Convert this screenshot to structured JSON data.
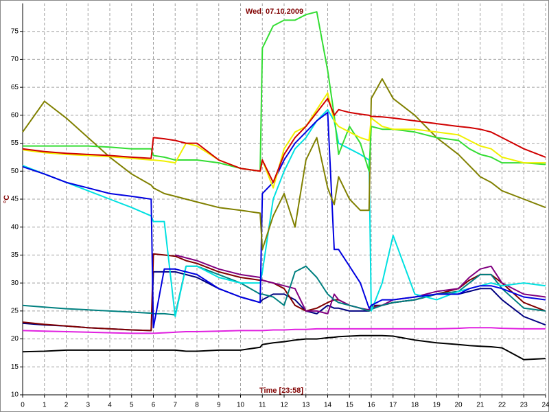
{
  "chart_data": {
    "type": "line",
    "title": "Wed, 07.10.2009",
    "x_label": "Time [23:58]",
    "y_label": "°C",
    "xlim": [
      0,
      24
    ],
    "ylim": [
      10,
      80
    ],
    "xticks": [
      0,
      1,
      2,
      3,
      4,
      5,
      6,
      7,
      8,
      9,
      10,
      11,
      12,
      13,
      14,
      15,
      16,
      17,
      18,
      19,
      20,
      21,
      22,
      23,
      24
    ],
    "yticks": [
      10,
      15,
      20,
      25,
      30,
      35,
      40,
      45,
      50,
      55,
      60,
      65,
      70,
      75
    ],
    "grid": true,
    "x": [
      0,
      1,
      2,
      3,
      4,
      5,
      5.9,
      6,
      6.5,
      7,
      7.5,
      8,
      9,
      10,
      10.9,
      11,
      11.5,
      12,
      12.5,
      13,
      13.5,
      14,
      14.3,
      14.5,
      15,
      15.5,
      15.9,
      16,
      16.5,
      17,
      18,
      19,
      20,
      20.5,
      21,
      21.5,
      22,
      23,
      24
    ],
    "series": [
      {
        "color": "#000000",
        "values": [
          17.7,
          17.8,
          18,
          18,
          18,
          18,
          18,
          18,
          18,
          18,
          17.8,
          17.8,
          18,
          18,
          18.5,
          19,
          19.3,
          19.5,
          19.8,
          20,
          20,
          20.2,
          20.3,
          20.4,
          20.5,
          20.6,
          20.6,
          20.6,
          20.6,
          20.5,
          19.8,
          19.3,
          19,
          18.8,
          18.7,
          18.6,
          18.4,
          16.3,
          16.5
        ]
      },
      {
        "color": "#e020e0",
        "values": [
          21.5,
          21.4,
          21.3,
          21.2,
          21.1,
          21,
          21,
          21,
          21.1,
          21.2,
          21.3,
          21.3,
          21.4,
          21.5,
          21.5,
          21.5,
          21.6,
          21.6,
          21.7,
          21.7,
          21.8,
          21.8,
          21.8,
          21.8,
          21.8,
          21.8,
          21.8,
          21.8,
          21.8,
          21.8,
          21.8,
          21.8,
          21.9,
          22,
          22,
          22,
          21.9,
          21.8,
          21.8
        ]
      },
      {
        "color": "#000080",
        "values": [
          22.8,
          22.5,
          22.3,
          22,
          21.8,
          21.6,
          21.5,
          32,
          32,
          32,
          31.5,
          31,
          29,
          27.5,
          26.5,
          27,
          28,
          28,
          27,
          25,
          24.5,
          26,
          25.5,
          25.5,
          25,
          25,
          25,
          26,
          26,
          26.5,
          27,
          28,
          28,
          28.5,
          29,
          29,
          27,
          24,
          22.5
        ]
      },
      {
        "color": "#800000",
        "values": [
          23,
          22.6,
          22.3,
          22,
          21.8,
          21.6,
          21.5,
          35.2,
          35,
          34.8,
          34,
          33.5,
          32,
          31,
          30.5,
          30.5,
          30,
          29,
          26,
          25,
          25.5,
          26.5,
          27,
          27,
          26,
          25.5,
          25,
          25.8,
          26,
          26.5,
          27,
          28,
          29,
          30.5,
          31.5,
          31.5,
          30,
          26.5,
          25
        ]
      },
      {
        "color": "#800080",
        "values": [
          null,
          null,
          null,
          null,
          null,
          null,
          null,
          null,
          null,
          35,
          34.5,
          34,
          32.5,
          31.5,
          31,
          30.5,
          30,
          29.5,
          29,
          25,
          25,
          24.5,
          28,
          27,
          26,
          25.5,
          25.2,
          25.5,
          26,
          27,
          27.5,
          28.5,
          29,
          31,
          32.5,
          33,
          30,
          28,
          27.5
        ]
      },
      {
        "color": "#008080",
        "values": [
          26,
          25.7,
          25.4,
          25.2,
          25,
          24.8,
          24.6,
          24.5,
          24.5,
          24.3,
          33,
          33,
          31.5,
          30,
          28,
          28,
          27.5,
          26,
          32,
          33,
          31,
          28,
          27,
          26.5,
          26,
          25.5,
          25,
          25.3,
          26,
          26.5,
          27,
          28,
          28.5,
          30,
          31.5,
          31.5,
          29,
          25.5,
          25
        ]
      },
      {
        "color": "#00e0e0",
        "values": [
          51,
          49.5,
          48,
          46.5,
          45,
          43.5,
          42,
          41,
          41,
          24,
          33,
          33,
          31,
          30,
          30,
          32,
          45,
          50,
          54,
          56,
          59,
          61,
          59,
          55,
          54,
          53,
          52,
          25,
          30,
          38.5,
          28,
          27,
          28.5,
          29,
          29.5,
          30,
          29.5,
          30,
          29.5
        ]
      },
      {
        "color": "#0000e0",
        "values": [
          50.8,
          49.5,
          48,
          47,
          46,
          45.5,
          45,
          22,
          32.5,
          32.5,
          32,
          31.5,
          29,
          27.5,
          26.5,
          46,
          48,
          52,
          55,
          57,
          59,
          60.5,
          36,
          36,
          33,
          30,
          25.5,
          26,
          27,
          27,
          27.5,
          28,
          28,
          29,
          29.5,
          29.5,
          29,
          27.5,
          27
        ]
      },
      {
        "color": "#808000",
        "values": [
          57,
          62.5,
          59.5,
          56,
          52.5,
          49.5,
          47.5,
          47,
          46,
          45.5,
          45,
          44.5,
          43.5,
          43,
          42.5,
          36,
          42,
          46,
          40,
          52,
          56,
          47,
          44,
          49,
          45,
          43,
          43,
          63,
          66.5,
          63,
          60,
          56,
          53,
          51,
          49,
          48,
          46.5,
          45,
          43.5
        ]
      },
      {
        "color": "#33dd33",
        "values": [
          54.5,
          54.5,
          54.5,
          54.5,
          54.3,
          54,
          54,
          52.8,
          52.5,
          52,
          52,
          52,
          51.5,
          50.5,
          50,
          72,
          76,
          77,
          77,
          78,
          78.5,
          68,
          60,
          53,
          58,
          55,
          50,
          58,
          57.5,
          57.5,
          57,
          56,
          55.5,
          54,
          53,
          52.5,
          51.5,
          51.5,
          51.2
        ]
      },
      {
        "color": "#f0f000",
        "values": [
          53.8,
          53.3,
          53,
          52.8,
          52.6,
          52.3,
          52,
          52,
          51.8,
          51.5,
          55,
          54.5,
          52,
          50.5,
          50,
          52,
          47,
          54,
          57,
          58,
          61,
          64,
          59,
          58,
          57,
          56,
          55.5,
          59.5,
          58,
          57.5,
          57.5,
          57,
          56.5,
          55.5,
          54.5,
          54,
          52.5,
          51.5,
          51.5
        ]
      },
      {
        "color": "#d00000",
        "values": [
          54,
          53.5,
          53.2,
          53,
          52.8,
          52.5,
          52.3,
          56,
          55.8,
          55.5,
          55,
          55,
          52,
          50.5,
          50,
          52,
          48,
          53,
          56,
          58,
          60.5,
          63,
          60,
          61,
          60.5,
          60.2,
          60,
          59.8,
          59.7,
          59.5,
          59,
          58.5,
          58,
          57.8,
          57.5,
          57,
          56,
          54,
          52.5
        ]
      }
    ]
  }
}
